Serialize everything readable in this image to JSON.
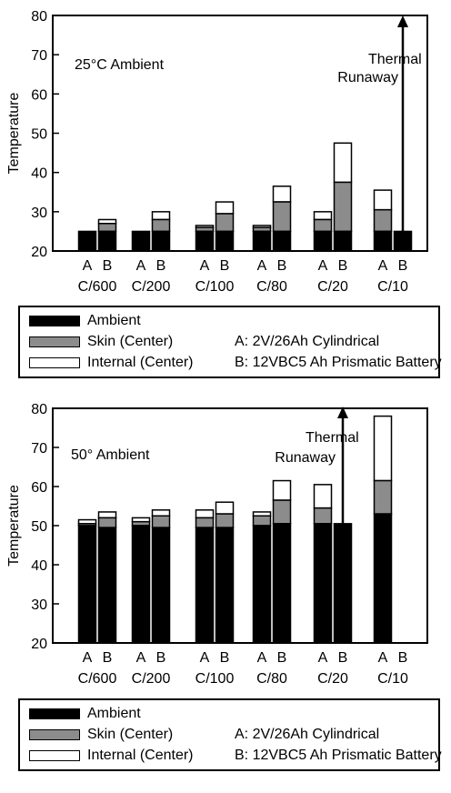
{
  "colors": {
    "ambient": "#000000",
    "skin": "#8c8c8c",
    "internal": "#ffffff"
  },
  "chart_data": [
    {
      "type": "bar",
      "stacked": true,
      "annotation": "25°C Ambient",
      "ylabel": "Temperature",
      "ylim": [
        20,
        80
      ],
      "yticks": [
        20,
        30,
        40,
        50,
        60,
        70,
        80
      ],
      "groups": [
        "C/600",
        "C/200",
        "C/100",
        "C/80",
        "C/20",
        "C/10"
      ],
      "bar_labels": [
        "A",
        "B"
      ],
      "thermal_runaway_label": [
        "Thermal",
        "Runaway"
      ],
      "thermal_runaway": {
        "group": "C/10",
        "bar": "B"
      },
      "bars": [
        {
          "group": "C/600",
          "bar": "A",
          "ambient": 25,
          "skin": 25,
          "internal": 25
        },
        {
          "group": "C/600",
          "bar": "B",
          "ambient": 25,
          "skin": 27,
          "internal": 28
        },
        {
          "group": "C/200",
          "bar": "A",
          "ambient": 25,
          "skin": 25,
          "internal": 25
        },
        {
          "group": "C/200",
          "bar": "B",
          "ambient": 25,
          "skin": 28,
          "internal": 30
        },
        {
          "group": "C/100",
          "bar": "A",
          "ambient": 25,
          "skin": 26,
          "internal": 26.5
        },
        {
          "group": "C/100",
          "bar": "B",
          "ambient": 25,
          "skin": 29.5,
          "internal": 32.5
        },
        {
          "group": "C/80",
          "bar": "A",
          "ambient": 25,
          "skin": 26,
          "internal": 26.5
        },
        {
          "group": "C/80",
          "bar": "B",
          "ambient": 25,
          "skin": 32.5,
          "internal": 36.5
        },
        {
          "group": "C/20",
          "bar": "A",
          "ambient": 25,
          "skin": 28,
          "internal": 30
        },
        {
          "group": "C/20",
          "bar": "B",
          "ambient": 25,
          "skin": 37.5,
          "internal": 47.5
        },
        {
          "group": "C/10",
          "bar": "A",
          "ambient": 25,
          "skin": 30.5,
          "internal": 35.5
        },
        {
          "group": "C/10",
          "bar": "B",
          "ambient": 25,
          "skin": 25,
          "internal": 25
        }
      ]
    },
    {
      "type": "bar",
      "stacked": true,
      "annotation": "50° Ambient",
      "ylabel": "Temperature",
      "ylim": [
        20,
        80
      ],
      "yticks": [
        20,
        30,
        40,
        50,
        60,
        70,
        80
      ],
      "groups": [
        "C/600",
        "C/200",
        "C/100",
        "C/80",
        "C/20",
        "C/10"
      ],
      "bar_labels": [
        "A",
        "B"
      ],
      "thermal_runaway_label": [
        "Thermal",
        "Runaway"
      ],
      "thermal_runaway": {
        "group": "C/20",
        "bar": "B"
      },
      "bars": [
        {
          "group": "C/600",
          "bar": "A",
          "ambient": 50,
          "skin": 50.5,
          "internal": 51.5
        },
        {
          "group": "C/600",
          "bar": "B",
          "ambient": 49.5,
          "skin": 52,
          "internal": 53.5
        },
        {
          "group": "C/200",
          "bar": "A",
          "ambient": 50,
          "skin": 51,
          "internal": 52
        },
        {
          "group": "C/200",
          "bar": "B",
          "ambient": 49.5,
          "skin": 52.5,
          "internal": 54
        },
        {
          "group": "C/100",
          "bar": "A",
          "ambient": 49.5,
          "skin": 52,
          "internal": 54
        },
        {
          "group": "C/100",
          "bar": "B",
          "ambient": 49.5,
          "skin": 53,
          "internal": 56
        },
        {
          "group": "C/80",
          "bar": "A",
          "ambient": 50,
          "skin": 52.5,
          "internal": 53.5
        },
        {
          "group": "C/80",
          "bar": "B",
          "ambient": 50.5,
          "skin": 56.5,
          "internal": 61.5
        },
        {
          "group": "C/20",
          "bar": "A",
          "ambient": 50.5,
          "skin": 54.5,
          "internal": 60.5
        },
        {
          "group": "C/20",
          "bar": "B",
          "ambient": 50.5,
          "skin": 50.5,
          "internal": 50.5
        },
        {
          "group": "C/10",
          "bar": "A",
          "ambient": 53,
          "skin": 61.5,
          "internal": 78
        }
      ]
    }
  ],
  "legends": [
    {
      "items": [
        {
          "key": "ambient",
          "label": "Ambient"
        },
        {
          "key": "skin",
          "label": "Skin (Center)"
        },
        {
          "key": "internal",
          "label": "Internal (Center)"
        }
      ],
      "notes": [
        "A: 2V/26Ah Cylindrical",
        "B: 12VBC5 Ah Prismatic Battery"
      ]
    },
    {
      "items": [
        {
          "key": "ambient",
          "label": "Ambient"
        },
        {
          "key": "skin",
          "label": "Skin (Center)"
        },
        {
          "key": "internal",
          "label": "Internal (Center)"
        }
      ],
      "notes": [
        "A: 2V/26Ah Cylindrical",
        "B: 12VBC5 Ah Prismatic Battery"
      ]
    }
  ]
}
